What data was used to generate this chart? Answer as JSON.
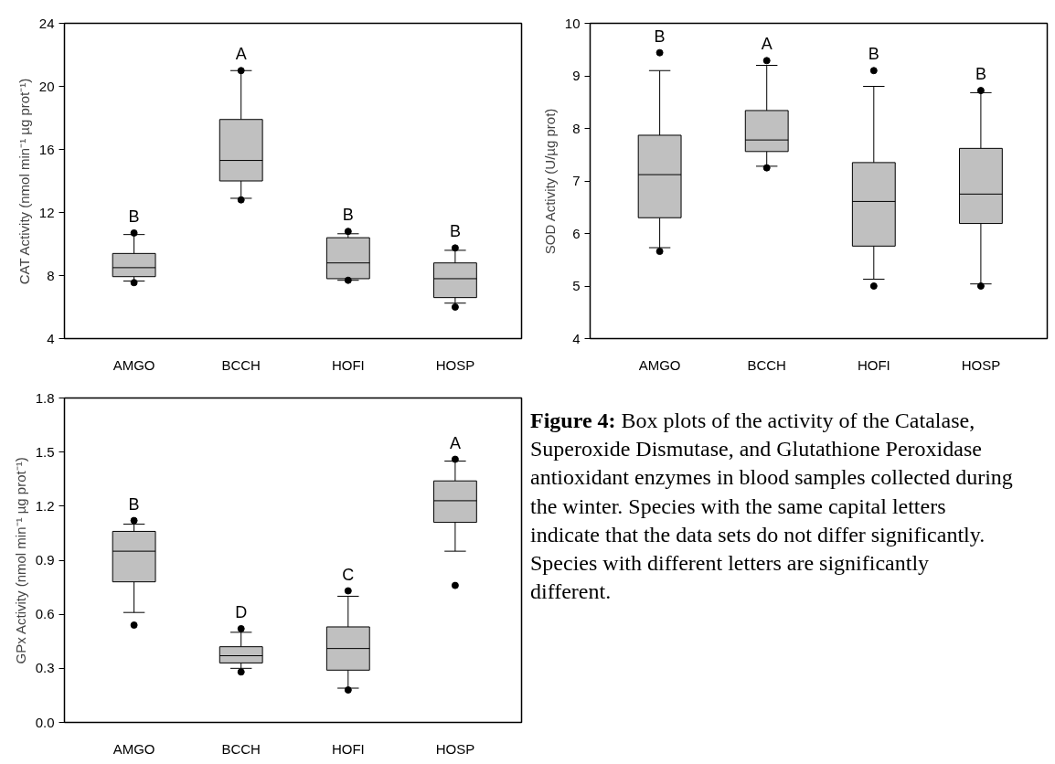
{
  "chart_data": [
    {
      "type": "box",
      "ylabel": "CAT Activity (nmol min⁻¹ µg prot⁻¹)",
      "categories": [
        "AMGO",
        "BCCH",
        "HOFI",
        "HOSP"
      ],
      "ylim": [
        4,
        24
      ],
      "yticks": [
        4,
        8,
        12,
        16,
        20,
        24
      ],
      "grid": false,
      "color": "#c0c0c0",
      "boxes": [
        {
          "low": 7.65,
          "q1": 7.93,
          "median": 8.5,
          "q3": 9.4,
          "high": 10.6,
          "outliers": [
            10.7,
            7.55
          ]
        },
        {
          "low": 12.9,
          "q1": 14.0,
          "median": 15.3,
          "q3": 17.9,
          "high": 21.0,
          "outliers": [
            21.0,
            12.8
          ]
        },
        {
          "low": 7.7,
          "q1": 7.8,
          "median": 8.8,
          "q3": 10.4,
          "high": 10.65,
          "outliers": [
            10.8,
            7.7
          ]
        },
        {
          "low": 6.25,
          "q1": 6.6,
          "median": 7.8,
          "q3": 8.8,
          "high": 9.6,
          "outliers": [
            9.75,
            6.0
          ]
        }
      ],
      "annotations": [
        "B",
        "A",
        "B",
        "B"
      ]
    },
    {
      "type": "box",
      "ylabel": "SOD Activity (U/µg prot)",
      "categories": [
        "AMGO",
        "BCCH",
        "HOFI",
        "HOSP"
      ],
      "ylim": [
        4,
        10
      ],
      "yticks": [
        4,
        5,
        6,
        7,
        8,
        9,
        10
      ],
      "grid": false,
      "color": "#c0c0c0",
      "boxes": [
        {
          "low": 5.73,
          "q1": 6.3,
          "median": 7.12,
          "q3": 7.87,
          "high": 9.1,
          "outliers": [
            9.44,
            5.66
          ]
        },
        {
          "low": 7.28,
          "q1": 7.56,
          "median": 7.78,
          "q3": 8.34,
          "high": 9.2,
          "outliers": [
            9.29,
            7.25
          ]
        },
        {
          "low": 5.13,
          "q1": 5.76,
          "median": 6.61,
          "q3": 7.35,
          "high": 8.8,
          "outliers": [
            9.1,
            5.0
          ]
        },
        {
          "low": 5.04,
          "q1": 6.19,
          "median": 6.75,
          "q3": 7.62,
          "high": 8.68,
          "outliers": [
            8.72,
            5.0
          ]
        }
      ],
      "annotations": [
        "B",
        "A",
        "B",
        "B"
      ]
    },
    {
      "type": "box",
      "ylabel": "GPx Activity (nmol min⁻¹ µg prot⁻¹)",
      "categories": [
        "AMGO",
        "BCCH",
        "HOFI",
        "HOSP"
      ],
      "ylim": [
        0,
        1.8
      ],
      "yticks": [
        {
          "value": 0,
          "label": "0.0"
        },
        0.3,
        0.6,
        0.9,
        1.2,
        1.5,
        1.8
      ],
      "grid": false,
      "color": "#c0c0c0",
      "boxes": [
        {
          "low": 0.61,
          "q1": 0.78,
          "median": 0.95,
          "q3": 1.06,
          "high": 1.1,
          "outliers": [
            1.12,
            0.54
          ]
        },
        {
          "low": 0.3,
          "q1": 0.33,
          "median": 0.37,
          "q3": 0.42,
          "high": 0.5,
          "outliers": [
            0.52,
            0.28
          ]
        },
        {
          "low": 0.19,
          "q1": 0.29,
          "median": 0.41,
          "q3": 0.53,
          "high": 0.7,
          "outliers": [
            0.73,
            0.18
          ]
        },
        {
          "low": 0.95,
          "q1": 1.11,
          "median": 1.23,
          "q3": 1.34,
          "high": 1.45,
          "outliers": [
            1.46,
            0.76
          ]
        }
      ],
      "annotations": [
        "B",
        "D",
        "C",
        "A"
      ]
    },
    {
      "type": "other",
      "title": "Figure 4:",
      "annotations": [
        "Box plots of the activity of the Catalase, Superoxide Dismutase, and Glutathione Peroxidase antioxidant enzymes in blood samples collected during the winter. Species with the same capital letters indicate that the data sets do not differ significantly. Species with different letters are significantly different."
      ]
    }
  ]
}
